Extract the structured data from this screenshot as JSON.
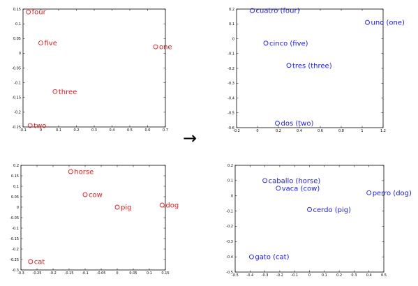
{
  "connector": {
    "arrow": "→"
  },
  "chart_data": [
    {
      "type": "scatter",
      "title": "",
      "xlabel": "",
      "ylabel": "",
      "xlim": [
        -0.1,
        0.7
      ],
      "ylim": [
        -0.25,
        0.15
      ],
      "xticks": [
        -0.1,
        0,
        0.1,
        0.2,
        0.3,
        0.4,
        0.5,
        0.6,
        0.7
      ],
      "yticks": [
        -0.25,
        -0.2,
        -0.15,
        -0.1,
        -0.05,
        0,
        0.05,
        0.1,
        0.15
      ],
      "color": "#e41a1c",
      "points": [
        {
          "label": "four",
          "x": -0.07,
          "y": 0.14
        },
        {
          "label": "five",
          "x": 0.0,
          "y": 0.035
        },
        {
          "label": "one",
          "x": 0.645,
          "y": 0.022
        },
        {
          "label": "three",
          "x": 0.08,
          "y": -0.13
        },
        {
          "label": "two",
          "x": -0.06,
          "y": -0.245
        }
      ]
    },
    {
      "type": "scatter",
      "title": "",
      "xlabel": "",
      "ylabel": "",
      "xlim": [
        -0.2,
        1.2
      ],
      "ylim": [
        -0.6,
        0.2
      ],
      "xticks": [
        -0.2,
        0,
        0.2,
        0.4,
        0.6,
        0.8,
        1,
        1.2
      ],
      "yticks": [
        -0.6,
        -0.5,
        -0.4,
        -0.3,
        -0.2,
        -0.1,
        0,
        0.1,
        0.2
      ],
      "color": "#1a1aff",
      "points": [
        {
          "label": "cuatro (four)",
          "x": -0.05,
          "y": 0.19
        },
        {
          "label": "uno (one)",
          "x": 1.05,
          "y": 0.11
        },
        {
          "label": "cinco (five)",
          "x": 0.08,
          "y": -0.03
        },
        {
          "label": "tres (three)",
          "x": 0.3,
          "y": -0.18
        },
        {
          "label": "dos (two)",
          "x": 0.19,
          "y": -0.57
        }
      ]
    },
    {
      "type": "scatter",
      "title": "",
      "xlabel": "",
      "ylabel": "",
      "xlim": [
        -0.3,
        0.15
      ],
      "ylim": [
        -0.3,
        0.2
      ],
      "xticks": [
        -0.3,
        -0.25,
        -0.2,
        -0.15,
        -0.1,
        -0.05,
        0,
        0.05,
        0.1,
        0.15
      ],
      "yticks": [
        -0.3,
        -0.25,
        -0.2,
        -0.15,
        -0.1,
        -0.05,
        0,
        0.05,
        0.1,
        0.15,
        0.2
      ],
      "color": "#e41a1c",
      "points": [
        {
          "label": "horse",
          "x": -0.145,
          "y": 0.17
        },
        {
          "label": "cow",
          "x": -0.1,
          "y": 0.06
        },
        {
          "label": "pig",
          "x": 0.0,
          "y": 0.0
        },
        {
          "label": "dog",
          "x": 0.14,
          "y": 0.01
        },
        {
          "label": "cat",
          "x": -0.27,
          "y": -0.26
        }
      ]
    },
    {
      "type": "scatter",
      "title": "",
      "xlabel": "",
      "ylabel": "",
      "xlim": [
        -0.5,
        0.5
      ],
      "ylim": [
        -0.5,
        0.2
      ],
      "xticks": [
        -0.5,
        -0.4,
        -0.3,
        -0.2,
        -0.1,
        0,
        0.1,
        0.2,
        0.3,
        0.4,
        0.5
      ],
      "yticks": [
        -0.5,
        -0.4,
        -0.3,
        -0.2,
        -0.1,
        0,
        0.1,
        0.2
      ],
      "color": "#1a1aff",
      "points": [
        {
          "label": "caballo (horse)",
          "x": -0.3,
          "y": 0.1
        },
        {
          "label": "vaca (cow)",
          "x": -0.21,
          "y": 0.05
        },
        {
          "label": "perro (dog)",
          "x": 0.4,
          "y": 0.02
        },
        {
          "label": "cerdo (pig)",
          "x": 0.0,
          "y": -0.09
        },
        {
          "label": "gato (cat)",
          "x": -0.39,
          "y": -0.4
        }
      ]
    }
  ]
}
